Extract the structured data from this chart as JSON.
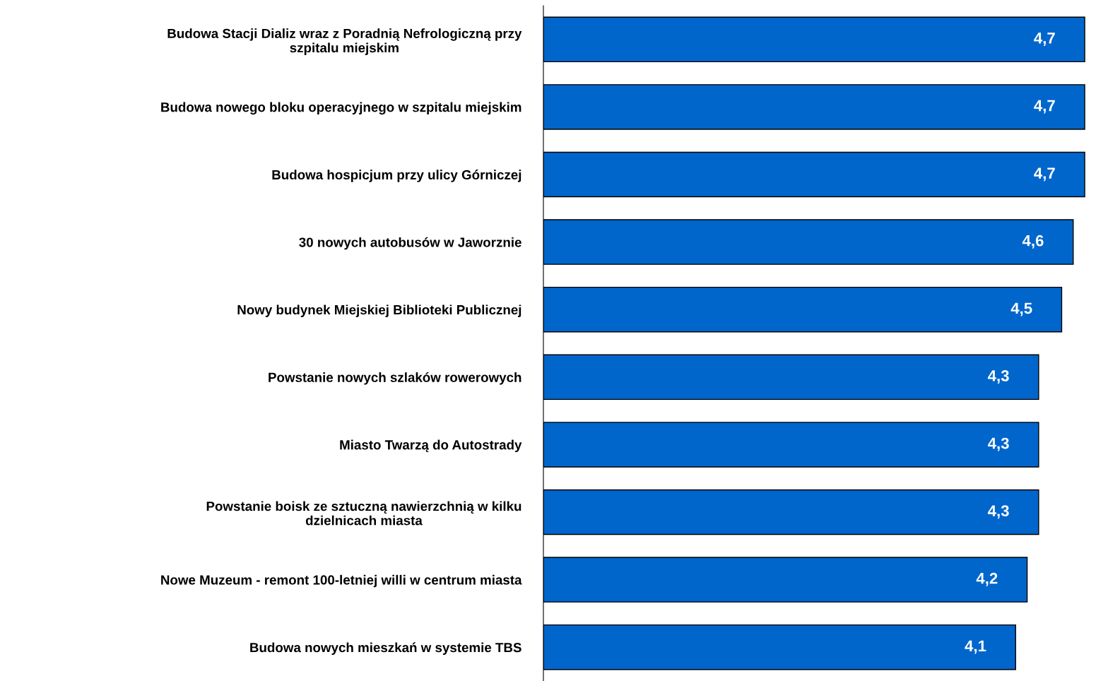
{
  "chart_data": {
    "type": "bar",
    "orientation": "horizontal",
    "categories": [
      "Budowa Stacji Dializ wraz z Poradnią Nefrologiczną przy\nszpitalu miejskim",
      "Budowa nowego bloku operacyjnego w szpitalu miejskim",
      "Budowa hospicjum przy ulicy Górniczej",
      "30 nowych autobusów w Jaworznie",
      "Nowy budynek Miejskiej Biblioteki Publicznej",
      "Powstanie nowych szlaków rowerowych",
      "Miasto Twarzą do Autostrady",
      "Powstanie boisk ze sztuczną nawierzchnią w kilku\ndzielnicach miasta",
      "Nowe Muzeum - remont 100-letniej willi w centrum miasta",
      "Budowa nowych mieszkań w systemie TBS"
    ],
    "values": [
      4.7,
      4.7,
      4.7,
      4.6,
      4.5,
      4.3,
      4.3,
      4.3,
      4.2,
      4.1
    ],
    "value_labels": [
      "4,7",
      "4,7",
      "4,7",
      "4,6",
      "4,5",
      "4,3",
      "4,3",
      "4,3",
      "4,2",
      "4,1"
    ],
    "color": "#0066cc",
    "tick_labels": "y",
    "grid": false,
    "legend": false
  }
}
